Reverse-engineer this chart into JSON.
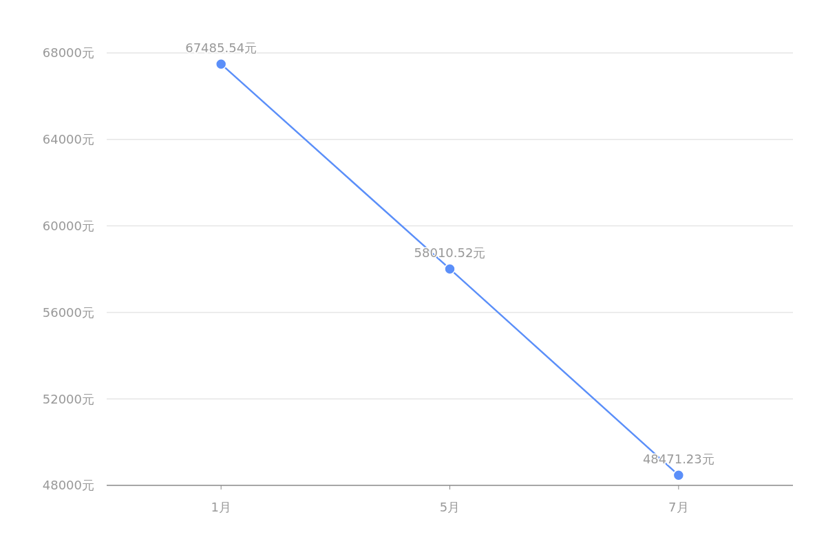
{
  "chart_data": {
    "type": "line",
    "categories": [
      "1月",
      "5月",
      "7月"
    ],
    "series": [
      {
        "color": "#5b8ff9",
        "values": [
          67485.54,
          58010.52,
          48471.23
        ],
        "value_labels": [
          "67485.54元",
          "58010.52元",
          "48471.23元"
        ]
      }
    ],
    "ylim": [
      48000,
      68000
    ],
    "yticks": [
      {
        "value": 48000,
        "label": "48000元"
      },
      {
        "value": 52000,
        "label": "52000元"
      },
      {
        "value": 56000,
        "label": "56000元"
      },
      {
        "value": 60000,
        "label": "60000元"
      },
      {
        "value": 64000,
        "label": "64000元"
      },
      {
        "value": 68000,
        "label": "68000元"
      }
    ],
    "grid": "y",
    "marker": "circle",
    "line_style": "solid"
  }
}
